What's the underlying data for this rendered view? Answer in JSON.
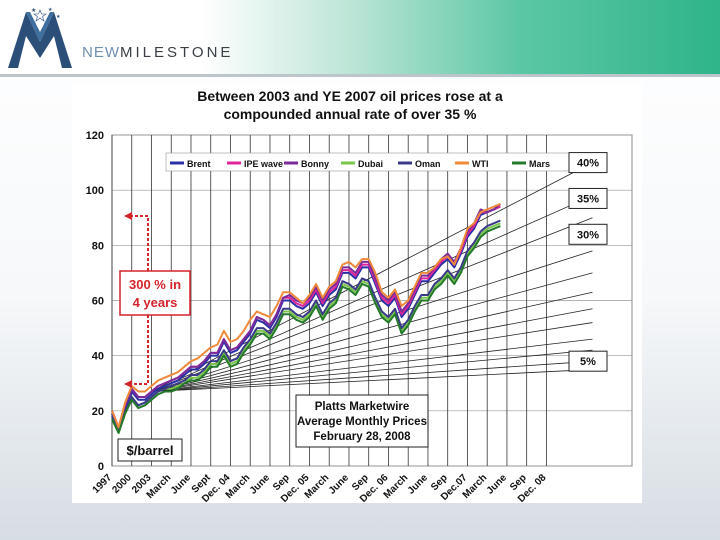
{
  "brand": {
    "prefix": "NEW",
    "name": "MILESTONE"
  },
  "colors": {
    "ipe": "#e0249a",
    "brent": "#2a2fa8",
    "bonny": "#7b2c9a",
    "dubai": "#79c64a",
    "oman": "#3b3a8a",
    "wti": "#f08a3a",
    "mars": "#237a2a",
    "annotation": "#d4232a",
    "trend": "#222222"
  },
  "chart_data": {
    "type": "line",
    "title_line1": "Between 2003 and YE 2007 oil prices rose at a",
    "title_line2": "compounded annual rate of  over 35 %",
    "ylabel": "$/barrel",
    "ylim": [
      0,
      120
    ],
    "yticks": [
      "0",
      "20",
      "40",
      "60",
      "80",
      "100",
      "120"
    ],
    "x_range": [
      0,
      79
    ],
    "xticks": [
      {
        "label": "1997",
        "x": 0
      },
      {
        "label": "2000",
        "x": 3
      },
      {
        "label": "2003",
        "x": 6
      },
      {
        "label": "March",
        "x": 9
      },
      {
        "label": "June",
        "x": 12
      },
      {
        "label": "Sept",
        "x": 15
      },
      {
        "label": "Dec. 04",
        "x": 18
      },
      {
        "label": "March",
        "x": 21
      },
      {
        "label": "June",
        "x": 24
      },
      {
        "label": "Sep",
        "x": 27
      },
      {
        "label": "Dec. 05",
        "x": 30
      },
      {
        "label": "March",
        "x": 33
      },
      {
        "label": "June",
        "x": 36
      },
      {
        "label": "Sep",
        "x": 39
      },
      {
        "label": "Dec. 06",
        "x": 42
      },
      {
        "label": "March",
        "x": 45
      },
      {
        "label": "June",
        "x": 48
      },
      {
        "label": "Sep",
        "x": 51
      },
      {
        "label": "Dec.07",
        "x": 54
      },
      {
        "label": "March",
        "x": 57
      },
      {
        "label": "June",
        "x": 60
      },
      {
        "label": "Sep",
        "x": 63
      },
      {
        "label": "Dec. 08",
        "x": 66
      }
    ],
    "legend": [
      {
        "name": "Brent",
        "key": "brent"
      },
      {
        "name": "IPE wave",
        "key": "ipe"
      },
      {
        "name": "Bonny",
        "key": "bonny"
      },
      {
        "name": "Dubai",
        "key": "dubai"
      },
      {
        "name": "Oman",
        "key": "oman"
      },
      {
        "name": "WTI",
        "key": "wti"
      },
      {
        "name": "Mars",
        "key": "mars"
      }
    ],
    "x": [
      0,
      1,
      2,
      3,
      4,
      5,
      6,
      7,
      8,
      9,
      10,
      11,
      12,
      13,
      14,
      15,
      16,
      17,
      18,
      19,
      20,
      21,
      22,
      23,
      24,
      25,
      26,
      27,
      28,
      29,
      30,
      31,
      32,
      33,
      34,
      35,
      36,
      37,
      38,
      39,
      40,
      41,
      42,
      43,
      44,
      45,
      46,
      47,
      48,
      49,
      50,
      51,
      52,
      53,
      54,
      55,
      56,
      57,
      58,
      59
    ],
    "series": [
      {
        "name": "Brent",
        "key": "brent",
        "values": [
          19,
          13,
          21,
          27,
          24,
          24,
          26,
          28,
          29,
          30,
          31,
          33,
          35,
          35,
          37,
          40,
          40,
          45,
          41,
          42,
          45,
          48,
          53,
          52,
          50,
          54,
          60,
          60,
          58,
          57,
          59,
          63,
          58,
          62,
          64,
          70,
          70,
          68,
          72,
          72,
          66,
          60,
          58,
          61,
          54,
          57,
          62,
          67,
          67,
          70,
          73,
          75,
          72,
          77,
          83,
          86,
          91,
          92,
          93,
          95
        ]
      },
      {
        "name": "IPE wave",
        "key": "ipe",
        "values": [
          20,
          14,
          22,
          28,
          25,
          25,
          27,
          29,
          30,
          31,
          32,
          34,
          36,
          36,
          38,
          41,
          41,
          46,
          42,
          43,
          46,
          49,
          54,
          53,
          51,
          55,
          61,
          61,
          59,
          58,
          60,
          64,
          59,
          63,
          65,
          71,
          71,
          69,
          73,
          73,
          67,
          61,
          59,
          62,
          55,
          58,
          63,
          68,
          68,
          71,
          74,
          76,
          73,
          78,
          84,
          87,
          92,
          92,
          93,
          94
        ]
      },
      {
        "name": "Bonny",
        "key": "bonny",
        "values": [
          20,
          14,
          22,
          28,
          25,
          25,
          27,
          29,
          30,
          31,
          32,
          34,
          36,
          36,
          38,
          41,
          41,
          46,
          42,
          43,
          46,
          49,
          54,
          53,
          51,
          55,
          61,
          62,
          60,
          59,
          61,
          65,
          60,
          64,
          66,
          72,
          72,
          70,
          74,
          74,
          68,
          62,
          60,
          63,
          56,
          59,
          64,
          69,
          69,
          72,
          75,
          77,
          74,
          79,
          85,
          88,
          93,
          92,
          93,
          95
        ]
      },
      {
        "name": "Dubai",
        "key": "dubai",
        "values": [
          18,
          12,
          19,
          25,
          22,
          23,
          25,
          27,
          28,
          28,
          29,
          30,
          32,
          32,
          34,
          37,
          37,
          41,
          37,
          38,
          42,
          45,
          49,
          49,
          47,
          51,
          56,
          56,
          54,
          53,
          55,
          59,
          54,
          58,
          60,
          66,
          65,
          63,
          67,
          66,
          60,
          55,
          53,
          56,
          49,
          52,
          57,
          61,
          61,
          65,
          67,
          70,
          67,
          71,
          77,
          80,
          84,
          86,
          87,
          88
        ]
      },
      {
        "name": "Oman",
        "key": "oman",
        "values": [
          18,
          13,
          20,
          25,
          22,
          23,
          25,
          27,
          28,
          29,
          30,
          31,
          33,
          33,
          35,
          38,
          38,
          42,
          38,
          39,
          43,
          46,
          50,
          50,
          48,
          52,
          57,
          57,
          55,
          54,
          56,
          60,
          55,
          59,
          61,
          67,
          66,
          64,
          68,
          67,
          61,
          56,
          54,
          57,
          50,
          53,
          58,
          62,
          62,
          66,
          68,
          71,
          68,
          72,
          78,
          81,
          85,
          87,
          88,
          89
        ]
      },
      {
        "name": "WTI",
        "key": "wti",
        "values": [
          20,
          14,
          23,
          29,
          27,
          27,
          29,
          31,
          32,
          33,
          34,
          36,
          38,
          39,
          41,
          43,
          44,
          49,
          45,
          46,
          49,
          53,
          56,
          55,
          54,
          58,
          63,
          63,
          61,
          59,
          62,
          66,
          61,
          65,
          67,
          73,
          74,
          72,
          75,
          75,
          70,
          63,
          61,
          64,
          58,
          60,
          65,
          70,
          70,
          72,
          75,
          76,
          73,
          79,
          86,
          88,
          92,
          93,
          94,
          95
        ]
      },
      {
        "name": "Mars",
        "key": "mars",
        "values": [
          17,
          12,
          19,
          24,
          21,
          22,
          24,
          26,
          27,
          27,
          28,
          30,
          31,
          31,
          33,
          36,
          36,
          40,
          36,
          37,
          41,
          44,
          48,
          48,
          46,
          50,
          55,
          55,
          53,
          52,
          54,
          58,
          53,
          57,
          59,
          65,
          64,
          62,
          66,
          65,
          59,
          54,
          52,
          55,
          48,
          51,
          56,
          60,
          60,
          64,
          66,
          69,
          66,
          70,
          76,
          79,
          83,
          85,
          86,
          87
        ]
      }
    ],
    "trend_lines": {
      "origin": {
        "x": 6,
        "y": 27
      },
      "end_x": 73,
      "end_values": [
        110,
        98,
        90,
        78,
        70,
        63,
        57,
        52,
        46,
        42,
        38,
        35
      ]
    },
    "annotations": {
      "rate_labels": [
        {
          "text": "40%",
          "y": 110
        },
        {
          "text": "35%",
          "y": 97
        },
        {
          "text": "30%",
          "y": 84
        },
        {
          "text": "5%",
          "y": 38
        }
      ],
      "increase_line1": "300 % in",
      "increase_line2": "4 years",
      "source_line1": "Platts Marketwire",
      "source_line2": "Average Monthly Prices",
      "source_line3": "February 28, 2008"
    }
  }
}
